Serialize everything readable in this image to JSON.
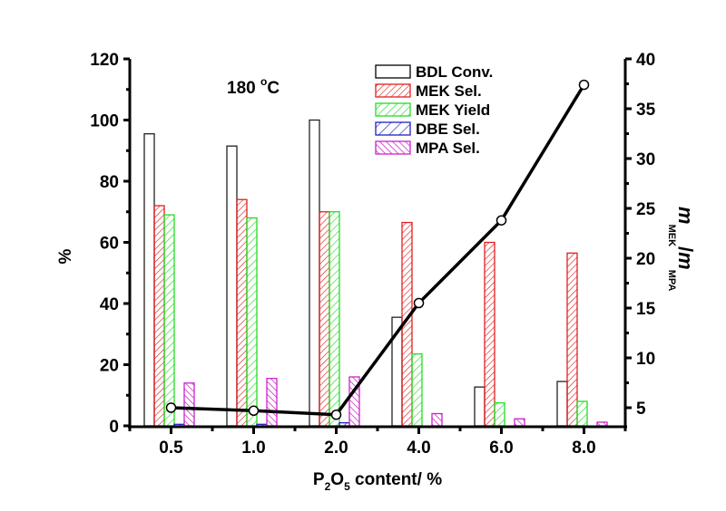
{
  "chart_data": {
    "type": "bar",
    "title": "",
    "annotation": "180 °C",
    "annotation_parts": {
      "value": "180 ",
      "degree": "o",
      "unit": "C"
    },
    "categories": [
      "0.5",
      "1.0",
      "2.0",
      "4.0",
      "6.0",
      "8.0"
    ],
    "xlabel": "P2O5 content/ %",
    "xlabel_parts": {
      "p": "P",
      "sub1": "2",
      "o": "O",
      "sub2": "5",
      "rest": " content/ %"
    },
    "ylabel": "%",
    "ylim": [
      0,
      120
    ],
    "yticks": [
      0,
      20,
      40,
      60,
      80,
      100,
      120
    ],
    "y2label": "m MEK / m MPA",
    "y2label_parts": {
      "m1": "m",
      "sub1": "MEK",
      "slash": "/",
      "m2": "m",
      "sub2": "MPA"
    },
    "y2lim": [
      3.2,
      40
    ],
    "y2ticks": [
      5,
      10,
      15,
      20,
      25,
      30,
      35,
      40
    ],
    "legend_position": "top-center",
    "series": [
      {
        "name": "BDL Conv.",
        "kind": "bar",
        "color": "#000000",
        "fill": "none",
        "values": [
          95.5,
          91.5,
          100,
          35.5,
          12.7,
          14.5
        ]
      },
      {
        "name": "MEK Sel.",
        "kind": "bar",
        "color": "#e02020",
        "fill": "hatch",
        "values": [
          72,
          74,
          70,
          66.5,
          60,
          56.5
        ]
      },
      {
        "name": "MEK Yield",
        "kind": "bar",
        "color": "#22dd22",
        "fill": "hatch",
        "values": [
          69,
          68,
          70,
          23.5,
          7.5,
          8
        ]
      },
      {
        "name": "DBE Sel.",
        "kind": "bar",
        "color": "#2020c0",
        "fill": "hatch",
        "values": [
          0.5,
          0.5,
          1,
          0,
          0,
          0
        ]
      },
      {
        "name": "MPA Sel.",
        "kind": "bar",
        "color": "#cc22cc",
        "fill": "hatch-reverse",
        "values": [
          14,
          15.5,
          16,
          4,
          2.3,
          1.2
        ]
      },
      {
        "name": "m MEK / m MPA",
        "kind": "line",
        "axis": "right",
        "color": "#000000",
        "values": [
          5.0,
          4.7,
          4.3,
          15.5,
          23.8,
          37.4
        ]
      }
    ]
  }
}
